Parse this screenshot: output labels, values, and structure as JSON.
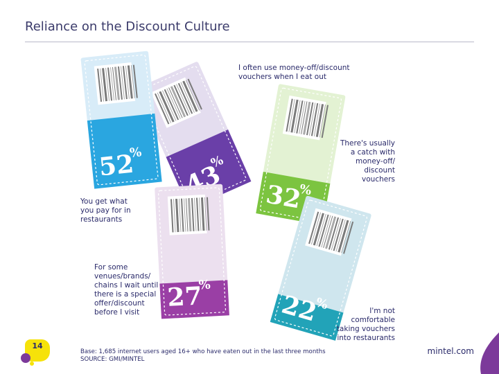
{
  "header": {
    "title": "Reliance on the Discount Culture"
  },
  "chart_data": {
    "type": "bar",
    "categories": [
      "You get what you pay for in restaurants",
      "I often use money-off/discount vouchers when I eat out",
      "There's usually a catch with money-off/ discount vouchers",
      "For some venues/brands/ chains I wait until there is a special offer/discount before I visit",
      "I'm not comfortable taking vouchers into restaurants"
    ],
    "values": [
      52,
      43,
      32,
      27,
      22
    ],
    "unit": "%",
    "value_labels": [
      "52",
      "43",
      "32",
      "27",
      "22"
    ],
    "colors": [
      "#2aa6e0",
      "#6a3fa8",
      "#7cc440",
      "#9a3fa5",
      "#22a3b8"
    ],
    "light_colors": [
      "#d8ecf8",
      "#e4ddef",
      "#e3f2d3",
      "#ece0ef",
      "#cfe6ee"
    ]
  },
  "statements": {
    "s1_l1": "You get what",
    "s1_l2": "you pay for in",
    "s1_l3": "restaurants",
    "s2_l1": "I often use money-off/discount",
    "s2_l2": "vouchers when I eat out",
    "s3_l1": "There's usually",
    "s3_l2": "a catch with",
    "s3_l3": "money-off/",
    "s3_l4": "discount",
    "s3_l5": "vouchers",
    "s4_l1": "For some",
    "s4_l2": "venues/brands/",
    "s4_l3": "chains I wait until",
    "s4_l4": "there is a special",
    "s4_l5": "offer/discount",
    "s4_l6": "before I visit",
    "s5_l1": "I'm not",
    "s5_l2": "comfortable",
    "s5_l3": "taking vouchers",
    "s5_l4": "into restaurants"
  },
  "footer": {
    "base": "Base: 1,685 internet users aged 16+ who have eaten out in the last three months",
    "source": "SOURCE: GMI/MINTEL",
    "page_number": "14",
    "brand": "mintel.com",
    "badge_color": "#f6e20a",
    "accent_color": "#7c3a9a"
  }
}
